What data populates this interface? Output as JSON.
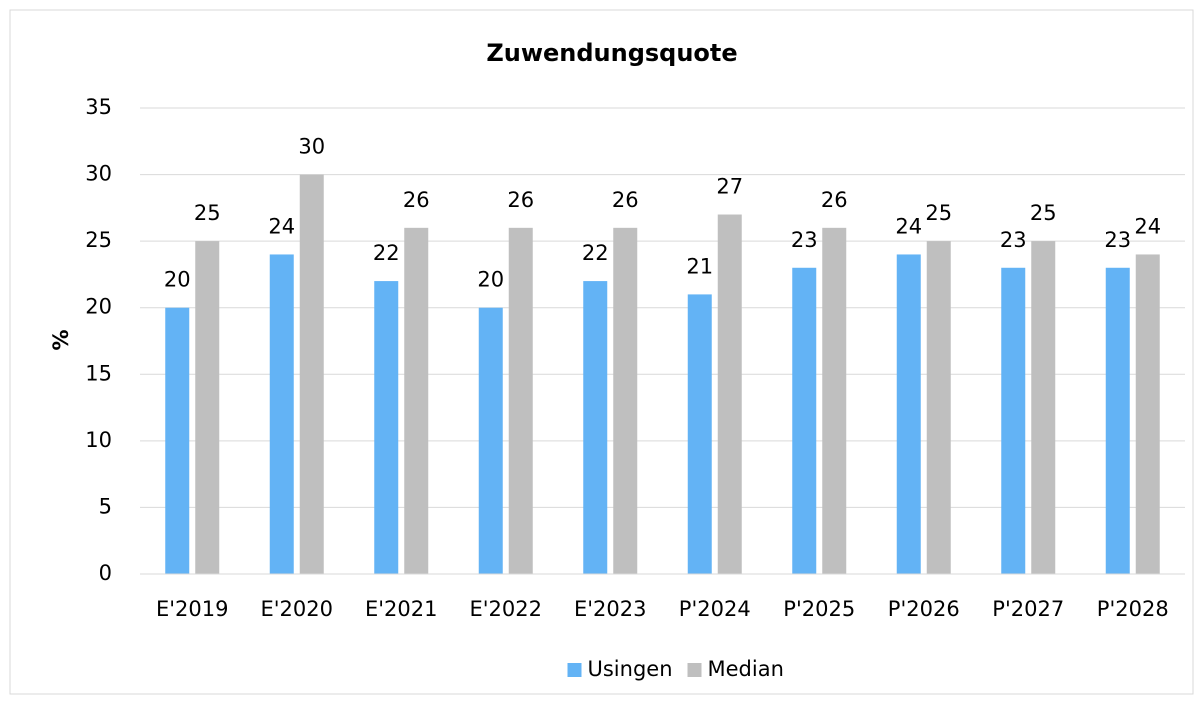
{
  "chart_data": {
    "type": "bar",
    "title": "Zuwendungsquote",
    "y_label": "%",
    "categories": [
      "E'2019",
      "E'2020",
      "E'2021",
      "E'2022",
      "E'2023",
      "P'2024",
      "P'2025",
      "P'2026",
      "P'2027",
      "P'2028"
    ],
    "series": [
      {
        "name": "Usingen",
        "color": "#63b3f5",
        "values": [
          20,
          24,
          22,
          20,
          22,
          21,
          23,
          24,
          23,
          23
        ]
      },
      {
        "name": "Median",
        "color": "#bfbfbf",
        "values": [
          25,
          30,
          26,
          26,
          26,
          27,
          26,
          25,
          25,
          24
        ]
      }
    ],
    "ylim": [
      0,
      35
    ],
    "yticks": [
      0,
      5,
      10,
      15,
      20,
      25,
      30,
      35
    ],
    "grid": true,
    "legend": "bottom"
  }
}
